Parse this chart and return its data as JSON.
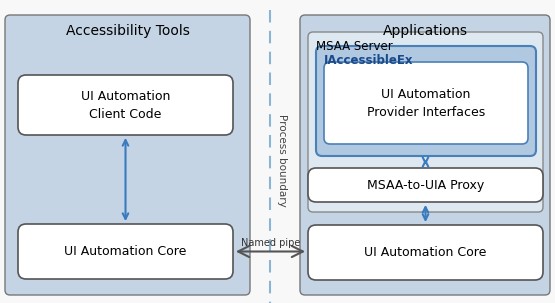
{
  "bg_outer": "#c8d8e8",
  "bg_panel": "#c0d0e0",
  "panel_ec": "#888888",
  "white_box_fc": "#ffffff",
  "white_box_ec": "#333333",
  "msaa_server_fc": "#ffffff",
  "msaa_server_ec": "#555555",
  "iaccessible_fc": "#aec8e0",
  "iaccessible_ec": "#4a80b8",
  "provider_fc": "#ffffff",
  "provider_ec": "#4a80b8",
  "arrow_color": "#3a7abf",
  "dashed_color": "#8ab4d4",
  "text_color": "#000000",
  "title_left": "Accessibility Tools",
  "title_right": "Applications",
  "title_msaa": "MSAA Server",
  "title_iaccessible": "IAccessibleEx",
  "label_client": "UI Automation\nClient Code",
  "label_core_left": "UI Automation Core",
  "label_provider": "UI Automation\nProvider Interfaces",
  "label_proxy": "MSAA-to-UIA Proxy",
  "label_core_right": "UI Automation Core",
  "label_process": "Process boundary",
  "label_named_pipe": "Named pipe"
}
